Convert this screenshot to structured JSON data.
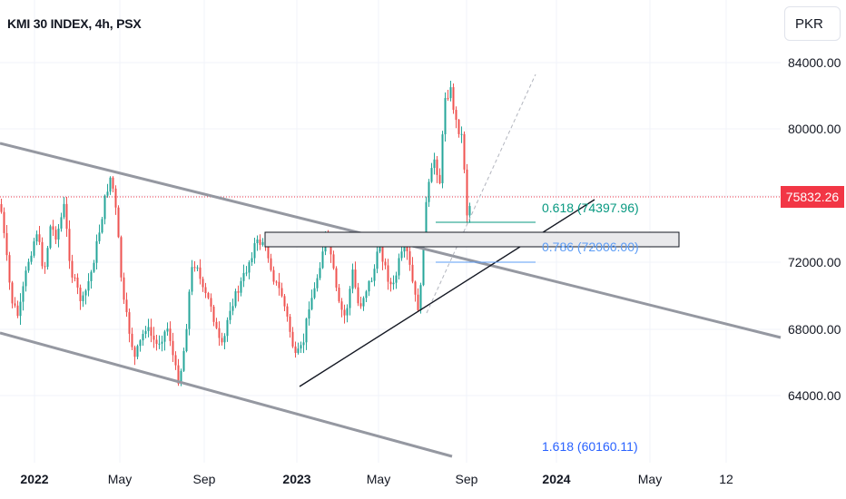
{
  "title": "KMI 30 INDEX, 4h, PSX",
  "currency": "PKR",
  "price_axis": {
    "labels": [
      "84000.00",
      "80000.00",
      "72000.00",
      "68000.00",
      "64000.00"
    ]
  },
  "last_price": "75832.26",
  "time_axis": [
    {
      "label": "2022",
      "bold": true
    },
    {
      "label": "May",
      "bold": false
    },
    {
      "label": "Sep",
      "bold": false
    },
    {
      "label": "2023",
      "bold": true
    },
    {
      "label": "May",
      "bold": false
    },
    {
      "label": "Sep",
      "bold": false
    },
    {
      "label": "2024",
      "bold": true
    },
    {
      "label": "May",
      "bold": false
    },
    {
      "label": "12",
      "bold": false
    }
  ],
  "fib_levels": {
    "level_0618": "0.618 (74397.96)",
    "level_0786": "0.786 (72006.00)",
    "level_1618": "1.618 (60160.11)"
  },
  "colors": {
    "up": "#26a69a",
    "down": "#ef5350",
    "last_price": "#f23645",
    "channel": "#9598a1",
    "fib_618": "#089981",
    "fib_786": "#5b9cf6",
    "fib_1618": "#2962ff"
  }
}
